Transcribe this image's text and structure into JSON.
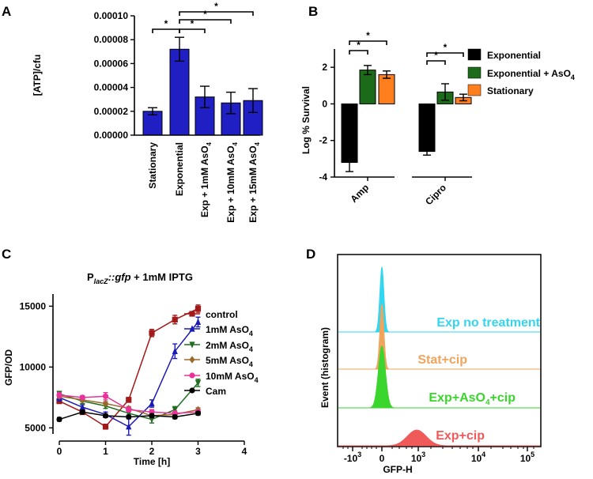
{
  "panel_labels": {
    "a": "A",
    "b": "B",
    "c": "C",
    "d": "D"
  },
  "chart_data": [
    {
      "panel": "A",
      "type": "bar",
      "title": "",
      "ylabel": "[ATP]/cfu",
      "xlabel": "",
      "ylim": [
        0,
        0.0001
      ],
      "yticks": [
        0,
        2e-05,
        4e-05,
        6e-05,
        8e-05,
        0.0001
      ],
      "ytick_labels": [
        "0.00000",
        "0.00002",
        "0.00004",
        "0.00006",
        "0.00008",
        "0.00010"
      ],
      "categories": [
        "Stationary",
        "Exponential",
        "Exp + 1mM AsO4",
        "Exp + 10mM AsO4",
        "Exp + 15mM AsO4"
      ],
      "category_labels": [
        {
          "main": "Stationary",
          "sub": ""
        },
        {
          "main": "Exponential",
          "sub": ""
        },
        {
          "main": "Exp + 1mM AsO",
          "sub": "4"
        },
        {
          "main": "Exp + 10mM AsO",
          "sub": "4"
        },
        {
          "main": "Exp + 15mM AsO",
          "sub": "4"
        }
      ],
      "values": [
        2e-05,
        7.2e-05,
        3.2e-05,
        2.7e-05,
        2.9e-05
      ],
      "errors": [
        3e-06,
        1e-05,
        9e-06,
        9e-06,
        1e-05
      ],
      "color": "#1f1fc4",
      "significance": [
        {
          "from": 0,
          "to": 1,
          "label": "*"
        },
        {
          "from": 1,
          "to": 2,
          "label": "*"
        },
        {
          "from": 1,
          "to": 3,
          "label": "*"
        },
        {
          "from": 1,
          "to": 4,
          "label": "*"
        }
      ]
    },
    {
      "panel": "B",
      "type": "bar",
      "ylabel": "Log % Survival",
      "ylim": [
        -4,
        3
      ],
      "yticks": [
        -4,
        -2,
        0,
        2
      ],
      "ytick_labels": [
        "-4",
        "-2",
        "0",
        "2"
      ],
      "categories": [
        "Amp",
        "Cipro"
      ],
      "series": [
        {
          "name": "Exponential",
          "name_sub": "",
          "color": "#000000",
          "values": [
            -3.2,
            -2.6
          ],
          "errors": [
            0.5,
            0.2
          ]
        },
        {
          "name": "Exponential + AsO",
          "name_sub": "4",
          "color": "#1b6b1b",
          "values": [
            1.85,
            0.65
          ],
          "errors": [
            0.25,
            0.45
          ]
        },
        {
          "name": "Stationary",
          "name_sub": "",
          "color": "#ff7f1e",
          "values": [
            1.6,
            0.35
          ],
          "errors": [
            0.2,
            0.18
          ]
        }
      ],
      "legend_position": "right",
      "significance": [
        {
          "category": 0,
          "from": 0,
          "to": 1,
          "label": "*"
        },
        {
          "category": 0,
          "from": 0,
          "to": 2,
          "label": "*"
        },
        {
          "category": 1,
          "from": 0,
          "to": 1,
          "label": "*"
        },
        {
          "category": 1,
          "from": 0,
          "to": 2,
          "label": "*"
        }
      ]
    },
    {
      "panel": "C",
      "type": "line",
      "title": {
        "p": "P",
        "sub": "lacZ",
        "gene": "::gfp",
        "rest": " + 1mM IPTG"
      },
      "xlabel": "Time [h]",
      "ylabel": "GFP/OD",
      "xlim": [
        0,
        4
      ],
      "ylim": [
        4500,
        16000
      ],
      "xticks": [
        0,
        1,
        2,
        3,
        4
      ],
      "yticks": [
        5000,
        10000,
        15000
      ],
      "ytick_labels": [
        "5000",
        "10000",
        "15000"
      ],
      "x": [
        0,
        0.5,
        1,
        1.5,
        2,
        2.5,
        3
      ],
      "series": [
        {
          "name": "control",
          "name_sub": "",
          "color": "#a31818",
          "marker": "square",
          "values": [
            7200,
            6300,
            5100,
            7300,
            12800,
            13900,
            14800
          ],
          "errors": [
            200,
            200,
            200,
            200,
            300,
            350,
            300
          ]
        },
        {
          "name": "1mM AsO",
          "name_sub": "4",
          "color": "#1a1ab5",
          "marker": "triangle-up",
          "values": [
            7500,
            6700,
            6100,
            5100,
            7000,
            11300,
            13700
          ],
          "errors": [
            300,
            200,
            200,
            700,
            300,
            600,
            400
          ]
        },
        {
          "name": "2mM AsO",
          "name_sub": "4",
          "color": "#1f6e1f",
          "marker": "triangle-down",
          "values": [
            7800,
            7200,
            6800,
            6200,
            5700,
            6500,
            8700
          ],
          "errors": [
            200,
            200,
            200,
            300,
            300,
            250,
            300
          ]
        },
        {
          "name": "5mM AsO",
          "name_sub": "4",
          "color": "#9a6a2a",
          "marker": "diamond",
          "values": [
            7600,
            7300,
            7000,
            6600,
            6000,
            6100,
            6500
          ],
          "errors": [
            150,
            150,
            150,
            150,
            150,
            150,
            150
          ]
        },
        {
          "name": "10mM AsO",
          "name_sub": "4",
          "color": "#e8329a",
          "marker": "circle",
          "values": [
            7700,
            7500,
            7600,
            6500,
            6300,
            6200,
            6300
          ],
          "errors": [
            200,
            150,
            300,
            200,
            200,
            200,
            200
          ]
        },
        {
          "name": "Cam",
          "name_sub": "",
          "color": "#000000",
          "marker": "circle",
          "values": [
            5700,
            6300,
            6000,
            5900,
            6000,
            5900,
            6200
          ],
          "errors": [
            150,
            150,
            150,
            150,
            150,
            150,
            150
          ]
        }
      ]
    },
    {
      "panel": "D",
      "type": "histogram",
      "xlabel": "GFP-H",
      "ylabel": "Event (histogram)",
      "xtick_labels": [
        {
          "base": "-10",
          "exp": "3"
        },
        {
          "base": "0",
          "exp": ""
        },
        {
          "base": "10",
          "exp": "3"
        },
        {
          "base": "10",
          "exp": "4"
        },
        {
          "base": "10",
          "exp": "5"
        }
      ],
      "tracks": [
        {
          "name": "Exp no treatment",
          "name_sub": "",
          "name_after": "",
          "color": "#33d6f0",
          "peak": 0,
          "width": "narrow"
        },
        {
          "name": "Stat+cip",
          "name_sub": "",
          "name_after": "",
          "color": "#f0a45c",
          "peak": 0,
          "width": "narrow"
        },
        {
          "name": "Exp+AsO",
          "name_sub": "4",
          "name_after": "+cip",
          "color": "#3ad62e",
          "peak": 0,
          "width": "medium"
        },
        {
          "name": "Exp+cip",
          "name_sub": "",
          "name_after": "",
          "color": "#ef5a5a",
          "peak": 700,
          "width": "wide"
        }
      ]
    }
  ]
}
